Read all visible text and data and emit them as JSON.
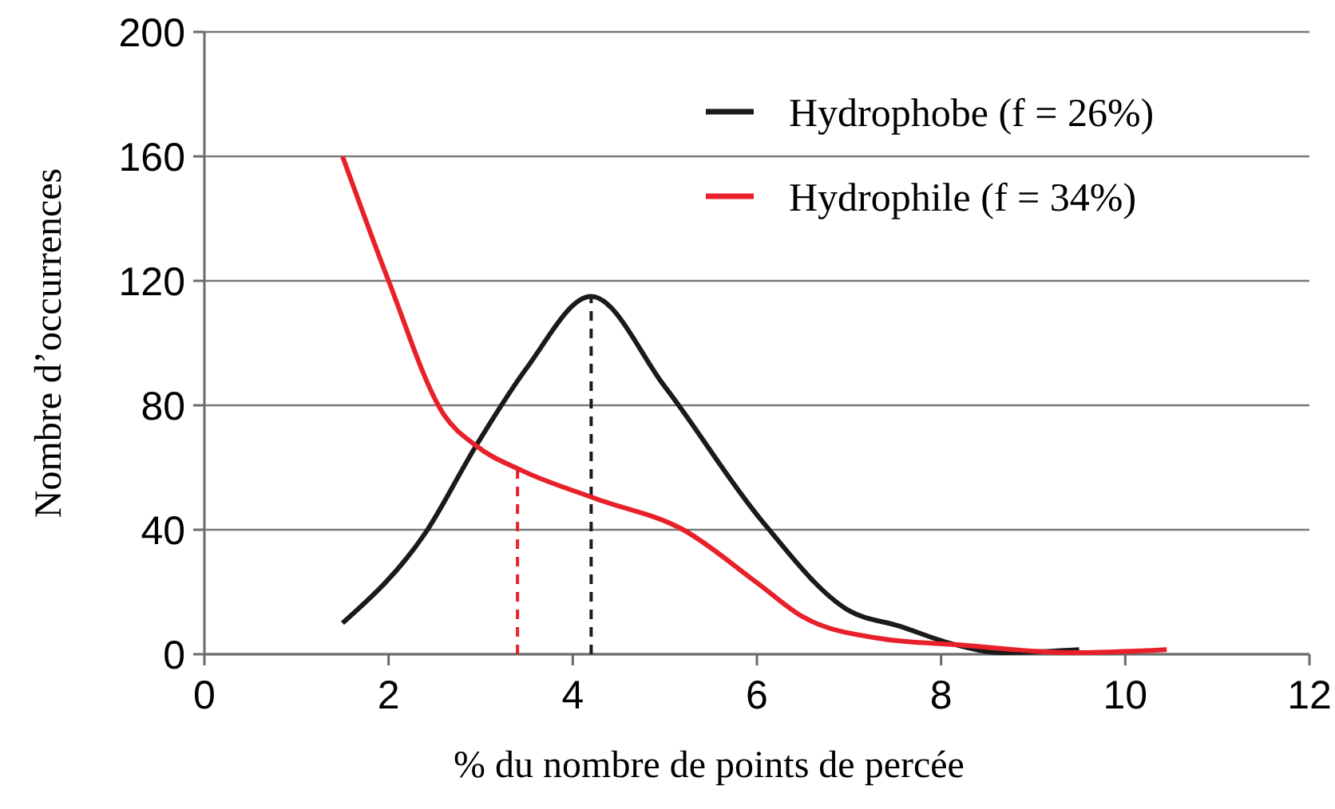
{
  "chart_data": {
    "type": "line",
    "xlabel": "% du nombre de points de percée",
    "ylabel": "Nombre d’occurrences",
    "xlim": [
      0,
      12
    ],
    "xticks": [
      0,
      2,
      4,
      6,
      8,
      10,
      12
    ],
    "ylim": [
      0,
      200
    ],
    "yticks": [
      0,
      40,
      80,
      120,
      160,
      200
    ],
    "grid": "y",
    "legend": "top right",
    "marker": "none",
    "line_style": "solid",
    "series": [
      {
        "name": "Hydrophobe (f = 26%)",
        "color": "#1a1a1a",
        "x": [
          1.5,
          2.4,
          2.95,
          3.5,
          4.2,
          5.0,
          6.05,
          7.0,
          7.55,
          8.1,
          8.65,
          9.5
        ],
        "values": [
          10,
          39,
          67,
          92,
          115,
          86,
          43,
          14,
          9,
          3.5,
          0.5,
          1.5
        ]
      },
      {
        "name": "Hydrophile (f = 34%)",
        "color": "#e8202a",
        "x": [
          1.5,
          2.0,
          2.6,
          2.95,
          3.45,
          4.25,
          5.2,
          6.0,
          6.5,
          7.35,
          8.2,
          9.4,
          10.45
        ],
        "values": [
          160,
          120,
          77,
          67,
          59,
          50,
          40,
          23,
          12,
          5,
          3,
          0.5,
          1.5
        ]
      }
    ],
    "ref_lines": [
      {
        "axis": "x",
        "value": 3.4,
        "color": "#e8202a",
        "line_style": "dashed"
      },
      {
        "axis": "x",
        "value": 4.2,
        "color": "#1a1a1a",
        "line_style": "dashed"
      }
    ]
  }
}
